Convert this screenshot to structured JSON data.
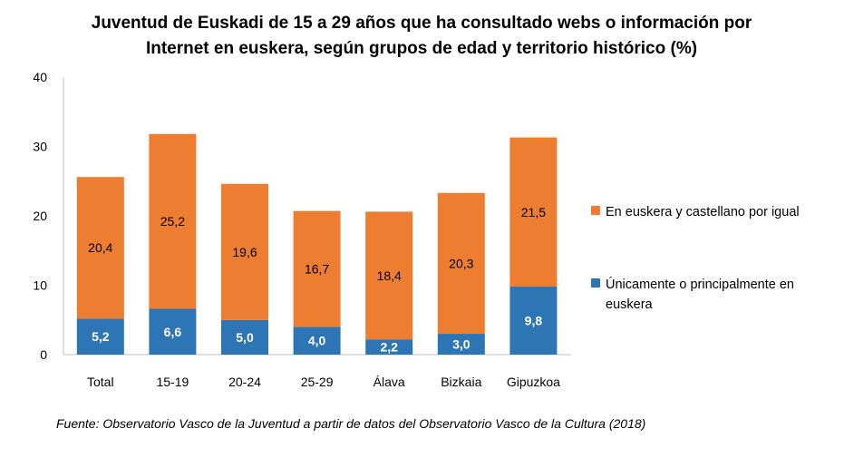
{
  "chart_data": {
    "type": "bar",
    "stacked": true,
    "title": [
      "Juventud de Euskadi de 15 a 29 años que ha consultado webs o información por",
      "Internet en euskera, según grupos de edad y territorio histórico (%)"
    ],
    "categories": [
      "Total",
      "15-19",
      "20-24",
      "25-29",
      "Álava",
      "Bizkaia",
      "Gipuzkoa"
    ],
    "series": [
      {
        "name": "Únicamente o principalmente en euskera",
        "legend_lines": [
          "Únicamente o principalmente en",
          "euskera"
        ],
        "color": "#2E75B6",
        "values": [
          5.2,
          6.6,
          5.0,
          4.0,
          2.2,
          3.0,
          9.8
        ],
        "labels": [
          "5,2",
          "6,6",
          "5,0",
          "4,0",
          "2,2",
          "3,0",
          "9,8"
        ]
      },
      {
        "name": "En euskera y castellano por igual",
        "legend_lines": [
          "En euskera y castellano por igual"
        ],
        "color": "#ED7D31",
        "values": [
          20.4,
          25.2,
          19.6,
          16.7,
          18.4,
          20.3,
          21.5
        ],
        "labels": [
          "20,4",
          "25,2",
          "19,6",
          "16,7",
          "18,4",
          "20,3",
          "21,5"
        ]
      }
    ],
    "ylim": [
      0,
      40
    ],
    "yticks": [
      0,
      10,
      20,
      30,
      40
    ],
    "grid": false,
    "legend_placement": "right",
    "source": "Fuente: Observatorio Vasco de la Juventud a partir de datos del Observatorio Vasco de la Cultura (2018)"
  }
}
